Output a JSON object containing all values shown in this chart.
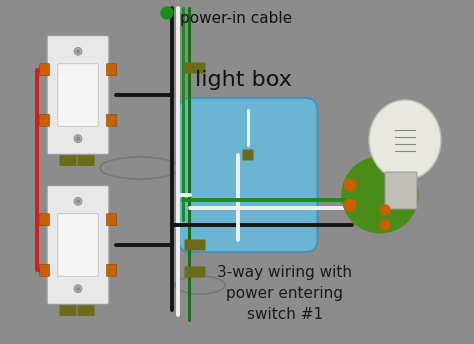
{
  "bg_color": "#8c8c8c",
  "title_text": "3-way wiring with\npower entering\nswitch #1",
  "title_color": "#1a1a1a",
  "label_power_in": "power-in cable",
  "label_light_box": "light box",
  "light_box_color": "#6ab4d4",
  "light_box_edge": "#4a90b8",
  "wire_black": "#151515",
  "wire_white": "#f0f0f0",
  "wire_red": "#cc2020",
  "wire_green": "#1a8c1a",
  "wire_green2": "#1a6e1a",
  "screw_olive": "#6b6b1a",
  "connector_orange": "#c86000",
  "switch_face": "#e8e8e8",
  "switch_edge": "#999999",
  "switch_rocker": "#f5f5f5",
  "bulb_glass": "#e8e8e0",
  "bulb_socket_green": "#4a8c1a",
  "bulb_base_color": "#c0c0b8"
}
